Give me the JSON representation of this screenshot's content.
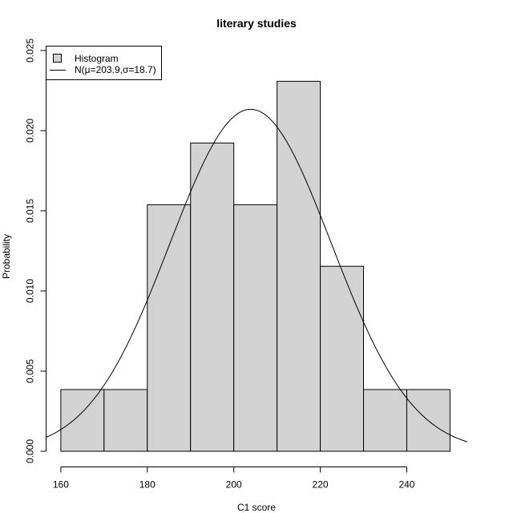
{
  "chart_data": {
    "type": "histogram",
    "title": "literary studies",
    "xlabel": "C1 score",
    "ylabel": "Probability",
    "xlim": [
      156.5,
      254
    ],
    "ylim": [
      0,
      0.0258
    ],
    "x_ticks": [
      160,
      180,
      200,
      220,
      240
    ],
    "x_tick_labels": [
      "160",
      "180",
      "200",
      "220",
      "240"
    ],
    "y_ticks": [
      0,
      0.005,
      0.01,
      0.015,
      0.02,
      0.025
    ],
    "y_tick_labels": [
      "0.000",
      "0.005",
      "0.010",
      "0.015",
      "0.020",
      "0.025"
    ],
    "bins": [
      {
        "x0": 160,
        "x1": 170,
        "density": 0.00385
      },
      {
        "x0": 170,
        "x1": 180,
        "density": 0.00385
      },
      {
        "x0": 180,
        "x1": 190,
        "density": 0.01538
      },
      {
        "x0": 190,
        "x1": 200,
        "density": 0.01923
      },
      {
        "x0": 200,
        "x1": 210,
        "density": 0.01538
      },
      {
        "x0": 210,
        "x1": 220,
        "density": 0.02308
      },
      {
        "x0": 220,
        "x1": 230,
        "density": 0.01154
      },
      {
        "x0": 230,
        "x1": 240,
        "density": 0.00385
      },
      {
        "x0": 240,
        "x1": 250,
        "density": 0.00385
      }
    ],
    "normal_curve": {
      "mu": 203.9,
      "sigma": 18.7,
      "x_range": [
        156.5,
        254
      ]
    },
    "bar_fill": "#d3d3d3",
    "line_color": "#000000",
    "legend": {
      "position": "top-left",
      "entries": [
        {
          "label": "Histogram",
          "symbol": "box"
        },
        {
          "label": "N(μ=203.9,σ=18.7)",
          "symbol": "line"
        }
      ]
    },
    "grid": false
  }
}
